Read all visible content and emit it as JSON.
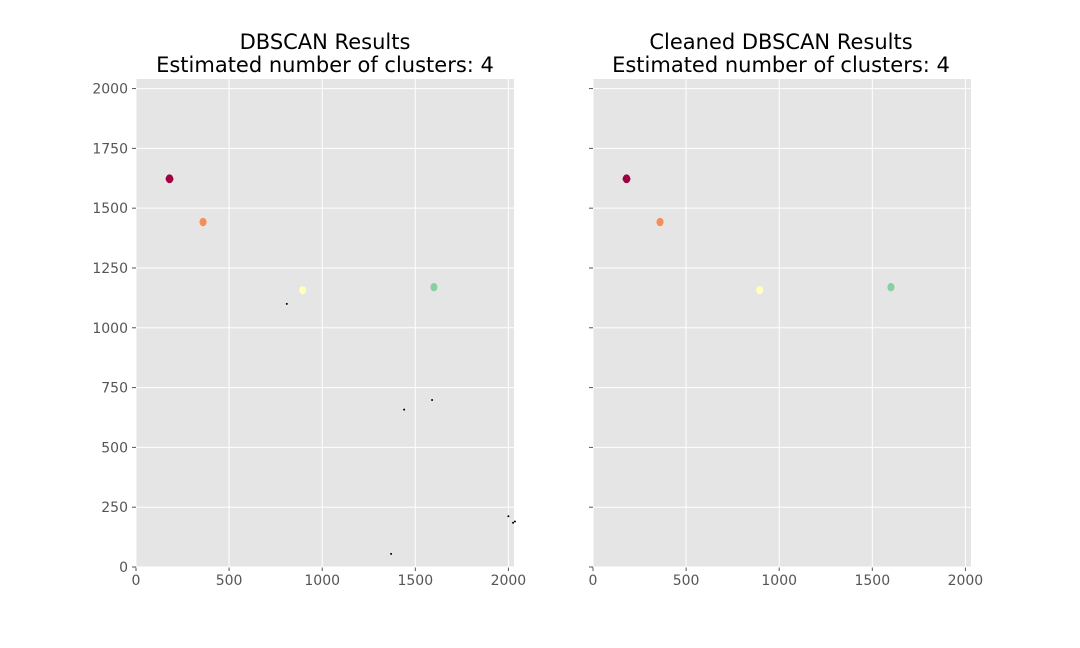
{
  "charts": [
    {
      "title_line1": "DBSCAN Results",
      "title_line2": "Estimated number of clusters: 4"
    },
    {
      "title_line1": "Cleaned DBSCAN Results",
      "title_line2": "Estimated number of clusters: 4"
    }
  ],
  "colors": {
    "background": "#e5e5e5",
    "grid": "#ffffff",
    "tick_label": "#555555",
    "noise": "#000000"
  },
  "chart_data": [
    {
      "type": "scatter",
      "title": "DBSCAN Results\nEstimated number of clusters: 4",
      "xlim": [
        0,
        2030
      ],
      "ylim": [
        0,
        2040
      ],
      "xticks": [
        0,
        500,
        1000,
        1500,
        2000
      ],
      "yticks": [
        0,
        250,
        500,
        750,
        1000,
        1250,
        1500,
        1750,
        2000
      ],
      "grid": true,
      "show_y_tick_labels": true,
      "clusters": [
        {
          "color": "#9e0142",
          "points": [
            [
              180,
              1628
            ],
            [
              176,
              1622
            ],
            [
              184,
              1622
            ],
            [
              180,
              1618
            ],
            [
              178,
              1625
            ],
            [
              182,
              1620
            ]
          ]
        },
        {
          "color": "#f68d59",
          "points": [
            [
              360,
              1446
            ],
            [
              358,
              1441
            ],
            [
              362,
              1443
            ],
            [
              360,
              1438
            ]
          ]
        },
        {
          "color": "#ffffbe",
          "points": [
            [
              895,
              1161
            ],
            [
              893,
              1156
            ],
            [
              897,
              1158
            ],
            [
              895,
              1154
            ]
          ]
        },
        {
          "color": "#88d0a4",
          "points": [
            [
              1600,
              1174
            ],
            [
              1598,
              1169
            ],
            [
              1602,
              1171
            ],
            [
              1600,
              1166
            ]
          ]
        }
      ],
      "noise": [
        [
          810,
          1100
        ],
        [
          1440,
          658
        ],
        [
          1590,
          698
        ],
        [
          1370,
          55
        ],
        [
          2000,
          212
        ],
        [
          2025,
          185
        ],
        [
          2035,
          190
        ]
      ]
    },
    {
      "type": "scatter",
      "title": "Cleaned DBSCAN Results\nEstimated number of clusters: 4",
      "xlim": [
        0,
        2030
      ],
      "ylim": [
        0,
        2040
      ],
      "xticks": [
        0,
        500,
        1000,
        1500,
        2000
      ],
      "yticks": [
        0,
        250,
        500,
        750,
        1000,
        1250,
        1500,
        1750,
        2000
      ],
      "grid": true,
      "show_y_tick_labels": false,
      "clusters": [
        {
          "color": "#9e0142",
          "points": [
            [
              180,
              1628
            ],
            [
              176,
              1622
            ],
            [
              184,
              1622
            ],
            [
              180,
              1618
            ],
            [
              178,
              1625
            ],
            [
              182,
              1620
            ]
          ]
        },
        {
          "color": "#f68d59",
          "points": [
            [
              360,
              1446
            ],
            [
              358,
              1441
            ],
            [
              362,
              1443
            ],
            [
              360,
              1438
            ]
          ]
        },
        {
          "color": "#ffffbe",
          "points": [
            [
              895,
              1161
            ],
            [
              893,
              1156
            ],
            [
              897,
              1158
            ],
            [
              895,
              1154
            ]
          ]
        },
        {
          "color": "#88d0a4",
          "points": [
            [
              1600,
              1174
            ],
            [
              1598,
              1169
            ],
            [
              1602,
              1171
            ],
            [
              1600,
              1166
            ]
          ]
        }
      ],
      "noise": []
    }
  ]
}
